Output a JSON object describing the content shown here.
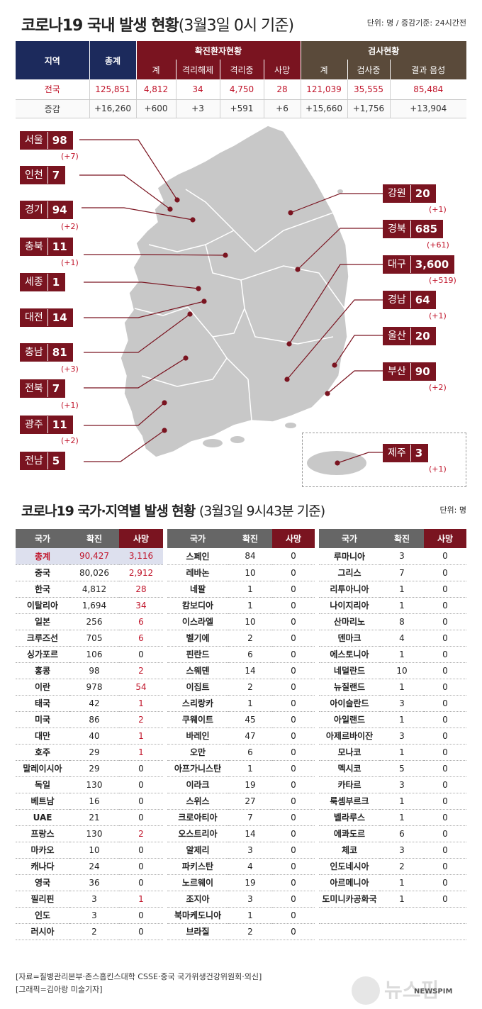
{
  "header": {
    "title": "코로나19 국내 발생 현황",
    "title_sub": "(3월3일 0시 기준)",
    "unit": "단위: 명 / 증감기준: 24시간전"
  },
  "domestic": {
    "h_region": "지역",
    "h_total": "총계",
    "h_confirmed": "확진환자현황",
    "h_tests": "검사현황",
    "sub": [
      "계",
      "격리해제",
      "격리중",
      "사망",
      "계",
      "검사중",
      "결과 음성"
    ],
    "row_total": [
      "전국",
      "125,851",
      "4,812",
      "34",
      "4,750",
      "28",
      "121,039",
      "35,555",
      "85,484"
    ],
    "row_delta": [
      "증감",
      "+16,260",
      "+600",
      "+3",
      "+591",
      "+6",
      "+15,660",
      "+1,756",
      "+13,904"
    ]
  },
  "regions": [
    {
      "name": "서울",
      "value": "98",
      "delta": "(+7)"
    },
    {
      "name": "인천",
      "value": "7",
      "delta": ""
    },
    {
      "name": "경기",
      "value": "94",
      "delta": "(+2)"
    },
    {
      "name": "충북",
      "value": "11",
      "delta": "(+1)"
    },
    {
      "name": "세종",
      "value": "1",
      "delta": ""
    },
    {
      "name": "대전",
      "value": "14",
      "delta": ""
    },
    {
      "name": "충남",
      "value": "81",
      "delta": "(+3)"
    },
    {
      "name": "전북",
      "value": "7",
      "delta": "(+1)"
    },
    {
      "name": "광주",
      "value": "11",
      "delta": "(+2)"
    },
    {
      "name": "전남",
      "value": "5",
      "delta": ""
    },
    {
      "name": "강원",
      "value": "20",
      "delta": "(+1)"
    },
    {
      "name": "경북",
      "value": "685",
      "delta": "(+61)"
    },
    {
      "name": "대구",
      "value": "3,600",
      "delta": "(+519)"
    },
    {
      "name": "경남",
      "value": "64",
      "delta": "(+1)"
    },
    {
      "name": "울산",
      "value": "20",
      "delta": ""
    },
    {
      "name": "부산",
      "value": "90",
      "delta": "(+2)"
    },
    {
      "name": "제주",
      "value": "3",
      "delta": "(+1)"
    }
  ],
  "world": {
    "title": "코로나19 국가·지역별 발생 현황",
    "title_sub": "(3월3일 9시43분 기준)",
    "unit": "단위: 명",
    "headers": [
      "국가",
      "확진",
      "사망"
    ],
    "col1": [
      [
        "총계",
        "90,427",
        "3,116"
      ],
      [
        "중국",
        "80,026",
        "2,912"
      ],
      [
        "한국",
        "4,812",
        "28"
      ],
      [
        "이탈리아",
        "1,694",
        "34"
      ],
      [
        "일본",
        "256",
        "6"
      ],
      [
        "크루즈선",
        "705",
        "6"
      ],
      [
        "싱가포르",
        "106",
        "0"
      ],
      [
        "홍콩",
        "98",
        "2"
      ],
      [
        "이란",
        "978",
        "54"
      ],
      [
        "태국",
        "42",
        "1"
      ],
      [
        "미국",
        "86",
        "2"
      ],
      [
        "대만",
        "40",
        "1"
      ],
      [
        "호주",
        "29",
        "1"
      ],
      [
        "말레이시아",
        "29",
        "0"
      ],
      [
        "독일",
        "130",
        "0"
      ],
      [
        "베트남",
        "16",
        "0"
      ],
      [
        "UAE",
        "21",
        "0"
      ],
      [
        "프랑스",
        "130",
        "2"
      ],
      [
        "마카오",
        "10",
        "0"
      ],
      [
        "캐나다",
        "24",
        "0"
      ],
      [
        "영국",
        "36",
        "0"
      ],
      [
        "필리핀",
        "3",
        "1"
      ],
      [
        "인도",
        "3",
        "0"
      ],
      [
        "러시아",
        "2",
        "0"
      ]
    ],
    "col2": [
      [
        "스페인",
        "84",
        "0"
      ],
      [
        "레바논",
        "10",
        "0"
      ],
      [
        "네팔",
        "1",
        "0"
      ],
      [
        "캄보디아",
        "1",
        "0"
      ],
      [
        "이스라엘",
        "10",
        "0"
      ],
      [
        "벨기에",
        "2",
        "0"
      ],
      [
        "핀란드",
        "6",
        "0"
      ],
      [
        "스웨덴",
        "14",
        "0"
      ],
      [
        "이집트",
        "2",
        "0"
      ],
      [
        "스리랑카",
        "1",
        "0"
      ],
      [
        "쿠웨이트",
        "45",
        "0"
      ],
      [
        "바레인",
        "47",
        "0"
      ],
      [
        "오만",
        "6",
        "0"
      ],
      [
        "아프가니스탄",
        "1",
        "0"
      ],
      [
        "이라크",
        "19",
        "0"
      ],
      [
        "스위스",
        "27",
        "0"
      ],
      [
        "크로아티아",
        "7",
        "0"
      ],
      [
        "오스트리아",
        "14",
        "0"
      ],
      [
        "알제리",
        "3",
        "0"
      ],
      [
        "파키스탄",
        "4",
        "0"
      ],
      [
        "노르웨이",
        "19",
        "0"
      ],
      [
        "조지아",
        "3",
        "0"
      ],
      [
        "북마케도니아",
        "1",
        "0"
      ],
      [
        "브라질",
        "2",
        "0"
      ]
    ],
    "col3": [
      [
        "루마니아",
        "3",
        "0"
      ],
      [
        "그리스",
        "7",
        "0"
      ],
      [
        "리투아니아",
        "1",
        "0"
      ],
      [
        "나이지리아",
        "1",
        "0"
      ],
      [
        "산마리노",
        "8",
        "0"
      ],
      [
        "덴마크",
        "4",
        "0"
      ],
      [
        "에스토니아",
        "1",
        "0"
      ],
      [
        "네덜란드",
        "10",
        "0"
      ],
      [
        "뉴질랜드",
        "1",
        "0"
      ],
      [
        "아이슬란드",
        "3",
        "0"
      ],
      [
        "아일랜드",
        "1",
        "0"
      ],
      [
        "아제르바이잔",
        "3",
        "0"
      ],
      [
        "모나코",
        "1",
        "0"
      ],
      [
        "멕시코",
        "5",
        "0"
      ],
      [
        "카타르",
        "3",
        "0"
      ],
      [
        "룩셈부르크",
        "1",
        "0"
      ],
      [
        "벨라루스",
        "1",
        "0"
      ],
      [
        "에콰도르",
        "6",
        "0"
      ],
      [
        "체코",
        "3",
        "0"
      ],
      [
        "인도네시아",
        "2",
        "0"
      ],
      [
        "아르메니아",
        "1",
        "0"
      ],
      [
        "도미니카공화국",
        "1",
        "0"
      ],
      [
        "",
        "",
        ""
      ],
      [
        "",
        "",
        ""
      ]
    ]
  },
  "footer": {
    "source": "[자료=질병관리본부·존스홉킨스대학 CSSE·중국 국가위생건강위원회·외신]",
    "credit": "[그래픽=김아랑 미술기자]",
    "logo": "뉴스핌",
    "logo_en": "NEWSPIM"
  },
  "colors": {
    "accent": "#7a1420",
    "navy": "#1c2a5c",
    "brown": "#5a4a3a",
    "highlight": "#c0142a"
  }
}
